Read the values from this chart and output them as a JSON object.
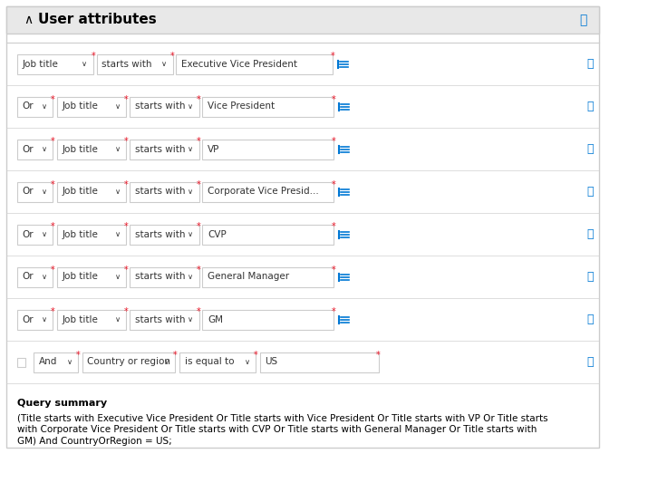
{
  "title": "User attributes",
  "background_color": "#f3f3f3",
  "white": "#ffffff",
  "border_color": "#cccccc",
  "blue": "#0078d4",
  "red": "#e81123",
  "text_color": "#000000",
  "gray_text": "#333333",
  "header_bg": "#e8e8e8",
  "row_bg": "#ffffff",
  "separator_color": "#d0d0d0",
  "rows": [
    {
      "has_or": false,
      "has_checkbox": false,
      "field": "Job title",
      "operator": "starts with",
      "value": "Executive Vice President",
      "has_list_icon": true
    },
    {
      "has_or": true,
      "has_checkbox": false,
      "field": "Job title",
      "operator": "starts with",
      "value": "Vice President",
      "has_list_icon": true
    },
    {
      "has_or": true,
      "has_checkbox": false,
      "field": "Job title",
      "operator": "starts with",
      "value": "VP",
      "has_list_icon": true
    },
    {
      "has_or": true,
      "has_checkbox": false,
      "field": "Job title",
      "operator": "starts with",
      "value": "Corporate Vice Presid...",
      "has_list_icon": true
    },
    {
      "has_or": true,
      "has_checkbox": false,
      "field": "Job title",
      "operator": "starts with",
      "value": "CVP",
      "has_list_icon": true
    },
    {
      "has_or": true,
      "has_checkbox": false,
      "field": "Job title",
      "operator": "starts with",
      "value": "General Manager",
      "has_list_icon": true
    },
    {
      "has_or": true,
      "has_checkbox": false,
      "field": "Job title",
      "operator": "starts with",
      "value": "GM",
      "has_list_icon": true
    },
    {
      "has_or": false,
      "has_checkbox": true,
      "connector": "And",
      "field": "Country or region",
      "operator": "is equal to",
      "value": "US",
      "has_list_icon": false
    }
  ],
  "query_summary_title": "Query summary",
  "query_summary_text": "(Title starts with Executive Vice President Or Title starts with Vice President Or Title starts with VP Or Title starts\nwith Corporate Vice President Or Title starts with CVP Or Title starts with General Manager Or Title starts with\nGM) And CountryOrRegion = US;"
}
